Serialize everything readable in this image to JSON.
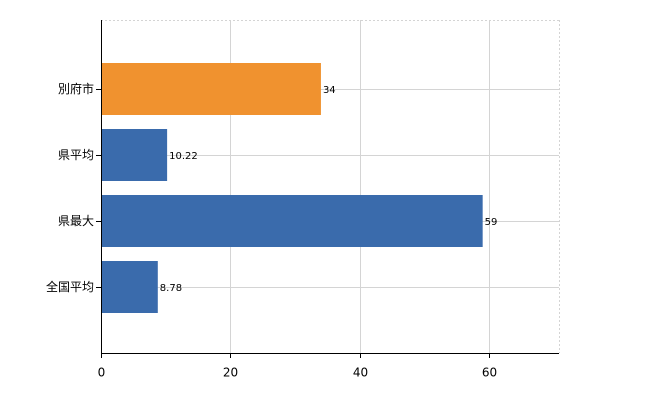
{
  "chart_data": {
    "type": "bar",
    "orientation": "horizontal",
    "categories": [
      "別府市",
      "県平均",
      "県最大",
      "全国平均"
    ],
    "values": [
      34,
      10.22,
      59,
      8.78
    ],
    "colors": [
      "#f0922f",
      "#3a6bac",
      "#3a6bac",
      "#3a6bac"
    ],
    "xlim": [
      0,
      70.8
    ],
    "xticks": [
      0,
      20,
      40,
      60
    ],
    "grid": true
  }
}
